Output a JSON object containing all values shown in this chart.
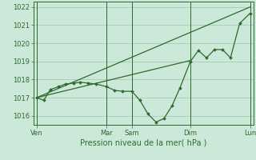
{
  "background_color": "#cce8d8",
  "grid_color": "#aacaba",
  "line_color": "#2d6b2d",
  "marker_color": "#2d6b2d",
  "xlabel": "Pression niveau de la mer( hPa )",
  "ylim": [
    1015.5,
    1022.3
  ],
  "yticks": [
    1016,
    1017,
    1018,
    1019,
    1020,
    1021,
    1022
  ],
  "xlim": [
    0,
    9.6
  ],
  "xtick_labels": [
    "Ven",
    "Mar",
    "Sam",
    "Dim",
    "Lun"
  ],
  "xtick_positions": [
    0.15,
    3.2,
    4.3,
    6.85,
    9.45
  ],
  "vline_positions": [
    0.15,
    3.2,
    4.3,
    6.85,
    9.45
  ],
  "series1_x": [
    0.15,
    0.45,
    0.75,
    1.1,
    1.4,
    1.75,
    2.05,
    2.4,
    2.75,
    3.2,
    3.55,
    3.9,
    4.3,
    4.65,
    5.0,
    5.35,
    5.7,
    6.05,
    6.4,
    6.85,
    7.2,
    7.55,
    7.9,
    8.25,
    8.6,
    9.0,
    9.45
  ],
  "series1_y": [
    1017.0,
    1016.85,
    1017.45,
    1017.6,
    1017.75,
    1017.8,
    1017.85,
    1017.8,
    1017.75,
    1017.6,
    1017.4,
    1017.35,
    1017.35,
    1016.85,
    1016.1,
    1015.65,
    1015.85,
    1016.55,
    1017.55,
    1019.0,
    1019.6,
    1019.2,
    1019.65,
    1019.65,
    1019.2,
    1021.1,
    1021.65
  ],
  "series2_x": [
    0.15,
    9.45
  ],
  "series2_y": [
    1017.0,
    1022.0
  ],
  "series3_x": [
    0.15,
    6.85
  ],
  "series3_y": [
    1017.0,
    1019.05
  ]
}
